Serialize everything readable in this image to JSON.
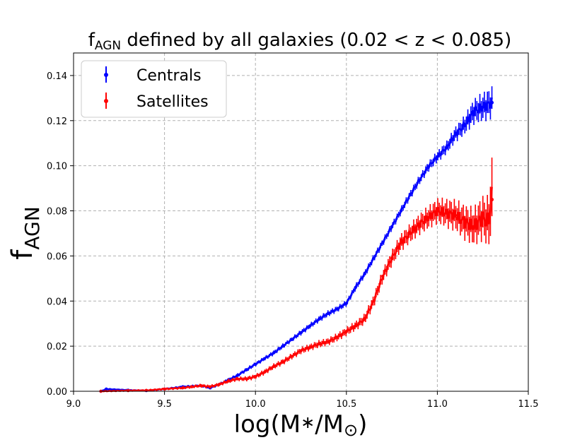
{
  "chart_data": {
    "type": "line",
    "title_main": "f",
    "title_sub": "AGN",
    "title_rest": " defined by all galaxies (0.02 < z < 0.085)",
    "xlabel_pre": "log(M",
    "xlabel_star": "∗",
    "xlabel_mid": "/M",
    "xlabel_sun": "⊙",
    "xlabel_post": ")",
    "ylabel_main": "f",
    "ylabel_sub": "AGN",
    "xlim": [
      9.0,
      11.5
    ],
    "ylim": [
      0.0,
      0.15
    ],
    "xticks": [
      "9.0",
      "9.5",
      "10.0",
      "10.5",
      "11.0",
      "11.5"
    ],
    "xtick_values": [
      9.0,
      9.5,
      10.0,
      10.5,
      11.0,
      11.5
    ],
    "yticks": [
      "0.00",
      "0.02",
      "0.04",
      "0.06",
      "0.08",
      "0.10",
      "0.12",
      "0.14"
    ],
    "ytick_values": [
      0.0,
      0.02,
      0.04,
      0.06,
      0.08,
      0.1,
      0.12,
      0.14
    ],
    "grid": true,
    "legend_position": "top-left",
    "series": [
      {
        "name": "Centrals",
        "color": "#0000ff",
        "x": [
          9.15,
          9.18,
          9.3,
          9.4,
          9.5,
          9.6,
          9.7,
          9.75,
          9.8,
          9.85,
          9.9,
          9.95,
          10.0,
          10.05,
          10.1,
          10.15,
          10.2,
          10.25,
          10.3,
          10.35,
          10.4,
          10.45,
          10.5,
          10.55,
          10.6,
          10.65,
          10.7,
          10.75,
          10.8,
          10.85,
          10.9,
          10.95,
          11.0,
          11.05,
          11.1,
          11.15,
          11.2,
          11.25,
          11.3
        ],
        "y": [
          0.0,
          0.001,
          0.0005,
          0.0003,
          0.001,
          0.002,
          0.0025,
          0.0015,
          0.003,
          0.005,
          0.007,
          0.0095,
          0.012,
          0.0145,
          0.017,
          0.02,
          0.023,
          0.026,
          0.029,
          0.032,
          0.0345,
          0.0365,
          0.039,
          0.046,
          0.052,
          0.059,
          0.066,
          0.073,
          0.08,
          0.087,
          0.0935,
          0.0995,
          0.104,
          0.108,
          0.114,
          0.118,
          0.124,
          0.126,
          0.128
        ],
        "err": [
          0.0001,
          0.0002,
          0.0002,
          0.0002,
          0.0003,
          0.0004,
          0.0005,
          0.0005,
          0.0005,
          0.0006,
          0.0006,
          0.0007,
          0.0007,
          0.0007,
          0.0008,
          0.0008,
          0.0008,
          0.0009,
          0.0009,
          0.001,
          0.001,
          0.001,
          0.001,
          0.0011,
          0.0011,
          0.0012,
          0.0012,
          0.0013,
          0.0013,
          0.0014,
          0.0015,
          0.0016,
          0.0018,
          0.002,
          0.0025,
          0.003,
          0.004,
          0.0045,
          0.005
        ]
      },
      {
        "name": "Satellites",
        "color": "#ff0000",
        "x": [
          9.15,
          9.3,
          9.4,
          9.5,
          9.6,
          9.65,
          9.7,
          9.75,
          9.8,
          9.85,
          9.9,
          9.95,
          10.0,
          10.05,
          10.1,
          10.15,
          10.2,
          10.25,
          10.3,
          10.35,
          10.4,
          10.45,
          10.5,
          10.55,
          10.6,
          10.65,
          10.7,
          10.75,
          10.8,
          10.85,
          10.9,
          10.95,
          11.0,
          11.05,
          11.1,
          11.15,
          11.2,
          11.25,
          11.28,
          11.3
        ],
        "y": [
          0.0,
          0.0003,
          0.0004,
          0.001,
          0.0015,
          0.002,
          0.0025,
          0.002,
          0.003,
          0.0045,
          0.0055,
          0.0055,
          0.0065,
          0.0085,
          0.011,
          0.013,
          0.0155,
          0.018,
          0.0195,
          0.021,
          0.022,
          0.024,
          0.0265,
          0.029,
          0.032,
          0.04,
          0.051,
          0.059,
          0.066,
          0.07,
          0.074,
          0.077,
          0.08,
          0.079,
          0.078,
          0.075,
          0.073,
          0.077,
          0.075,
          0.085
        ],
        "err": [
          0.0002,
          0.0003,
          0.0003,
          0.0004,
          0.0005,
          0.0005,
          0.0006,
          0.0006,
          0.0006,
          0.0007,
          0.0007,
          0.0008,
          0.0008,
          0.0009,
          0.0009,
          0.001,
          0.001,
          0.0011,
          0.0011,
          0.0012,
          0.0012,
          0.0013,
          0.0014,
          0.0015,
          0.0017,
          0.002,
          0.0022,
          0.0025,
          0.0028,
          0.003,
          0.0033,
          0.0036,
          0.004,
          0.0045,
          0.005,
          0.0055,
          0.006,
          0.007,
          0.008,
          0.013
        ]
      }
    ]
  }
}
